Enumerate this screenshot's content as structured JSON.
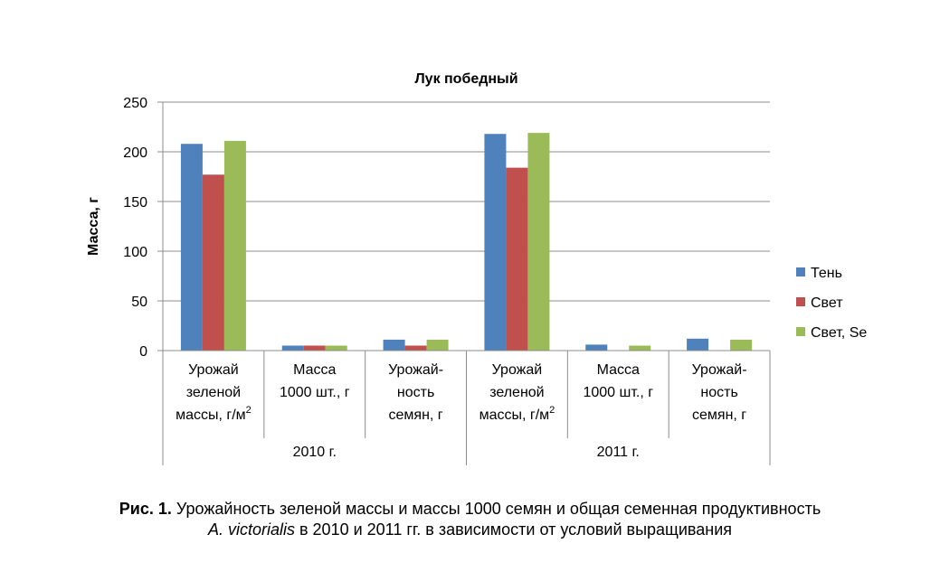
{
  "chart_data": {
    "type": "bar",
    "title": "Лук победный",
    "ylabel": "Масса, г",
    "ylim": [
      0,
      250
    ],
    "yticks": [
      0,
      50,
      100,
      150,
      200,
      250
    ],
    "grid": true,
    "legend_position": "right",
    "groups": [
      {
        "label": "2010 г.",
        "categories": [
          {
            "lines": [
              "Урожай",
              "зеленой",
              "массы, г/м"
            ],
            "sup": "2"
          },
          {
            "lines": [
              "Масса",
              "1000 шт., г"
            ]
          },
          {
            "lines": [
              "Урожай-",
              "ность",
              "семян, г"
            ]
          }
        ]
      },
      {
        "label": "2011 г.",
        "categories": [
          {
            "lines": [
              "Урожай",
              "зеленой",
              "массы, г/м"
            ],
            "sup": "2"
          },
          {
            "lines": [
              "Масса",
              "1000 шт., г"
            ]
          },
          {
            "lines": [
              "Урожай-",
              "ность",
              "семян, г"
            ]
          }
        ]
      }
    ],
    "series": [
      {
        "name": "Тень",
        "color": "#4f81bd",
        "values": [
          208,
          5,
          11,
          218,
          6,
          12
        ]
      },
      {
        "name": "Свет",
        "color": "#c0504d",
        "values": [
          177,
          5,
          5,
          184,
          null,
          null
        ]
      },
      {
        "name": "Свет, Se",
        "color": "#9bbb59",
        "values": [
          211,
          5,
          11,
          219,
          5,
          11
        ]
      }
    ]
  },
  "caption": {
    "label": "Рис. 1.",
    "text1": " Урожайность зеленой массы и массы 1000 семян и общая семенная продуктивность",
    "species": "A. victorialis",
    "text2": " в 2010 и 2011 гг. в зависимости от условий выращивания"
  }
}
